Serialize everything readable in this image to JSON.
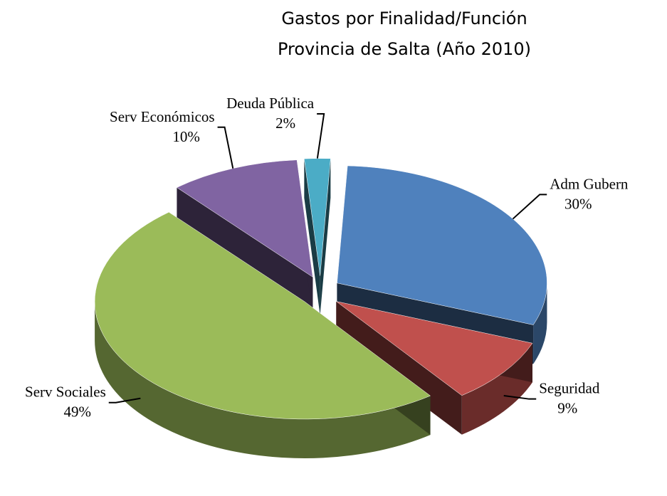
{
  "chart_data": {
    "type": "pie",
    "title": "Gastos por Finalidad/Función",
    "subtitle": "Provincia de Salta (Año 2010)",
    "categories": [
      "Adm Gubern",
      "Seguridad",
      "Serv Sociales",
      "Serv Económicos",
      "Deuda Pública"
    ],
    "values": [
      30,
      9,
      49,
      10,
      2
    ],
    "value_labels": [
      "30%",
      "9%",
      "49%",
      "10%",
      "2%"
    ],
    "colors": [
      "#4f81bd",
      "#c0504d",
      "#9bbb59",
      "#8064a2",
      "#4bacc6"
    ]
  }
}
